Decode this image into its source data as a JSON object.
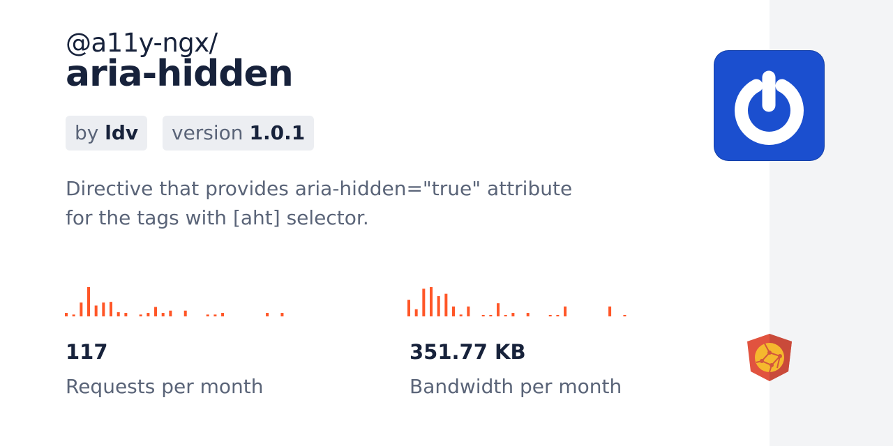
{
  "package": {
    "scope": "@a11y-ngx/",
    "name": "aria-hidden"
  },
  "badges": {
    "by_prefix": "by",
    "author": "ldv",
    "version_prefix": "version",
    "version": "1.0.1"
  },
  "description_lines": [
    "Directive that provides aria-hidden=\"true\" attribute",
    "for the tags with [aht] selector."
  ],
  "stats": {
    "requests": {
      "value": "117",
      "label": "Requests per month"
    },
    "bandwidth": {
      "value": "351.77 KB",
      "label": "Bandwidth per month"
    }
  },
  "colors": {
    "bar": "#ff5627",
    "logo_bg": "#1b4fcf"
  },
  "chart_data": [
    {
      "type": "bar",
      "values": [
        15,
        8,
        60,
        127,
        47,
        60,
        63,
        18,
        15,
        0,
        8,
        15,
        41,
        15,
        25,
        0,
        25,
        0,
        0,
        8,
        8,
        15,
        0,
        0,
        0,
        0,
        0,
        15,
        0,
        15
      ]
    },
    {
      "type": "bar",
      "values": [
        72,
        31,
        120,
        127,
        88,
        98,
        43,
        8,
        43,
        0,
        3,
        3,
        57,
        5,
        15,
        0,
        15,
        0,
        0,
        5,
        5,
        43,
        0,
        0,
        0,
        0,
        0,
        43,
        0,
        5
      ]
    }
  ],
  "icons": {
    "logo": "power-icon",
    "framework": "angular-shield-icon"
  }
}
